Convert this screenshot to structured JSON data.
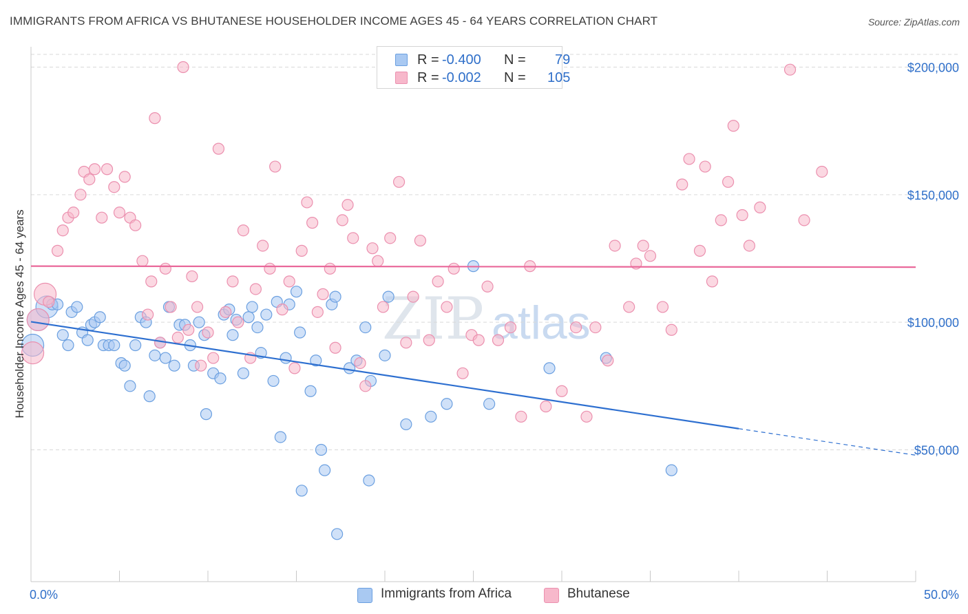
{
  "title": "IMMIGRANTS FROM AFRICA VS BHUTANESE HOUSEHOLDER INCOME AGES 45 - 64 YEARS CORRELATION CHART",
  "source": "Source: ZipAtlas.com",
  "watermark": {
    "zip": "ZIP",
    "atlas": "atlas"
  },
  "legend": {
    "r_label": "R =",
    "n_label": "N =",
    "africa": {
      "r": "-0.400",
      "n": "79"
    },
    "bhutanese": {
      "r": "-0.002",
      "n": "105"
    }
  },
  "colors": {
    "africa_fill": "#a9c9f2",
    "africa_stroke": "#6a9fe0",
    "africa_line": "#2d6fd0",
    "bhutanese_fill": "#f7b8cb",
    "bhutanese_stroke": "#eb8fae",
    "bhutanese_line": "#e9689a",
    "tick_label": "#2f6fc9",
    "grid": "#d9d9d9"
  },
  "chart_data": {
    "type": "scatter",
    "title": "IMMIGRANTS FROM AFRICA VS BHUTANESE HOUSEHOLDER INCOME AGES 45 - 64 YEARS CORRELATION CHART",
    "xlabel": "",
    "ylabel": "Householder Income Ages 45 - 64 years",
    "xlim": [
      0,
      50
    ],
    "ylim": [
      0,
      205000
    ],
    "x_tick_labels": [
      "0.0%",
      "50.0%"
    ],
    "y_ticks": [
      50000,
      100000,
      150000,
      200000
    ],
    "y_tick_labels": [
      "$50,000",
      "$100,000",
      "$150,000",
      "$200,000"
    ],
    "grid": "horizontal dashed",
    "legend_position": "top-center and bottom",
    "series": [
      {
        "name": "Immigrants from Africa",
        "r": -0.4,
        "n": 79,
        "trend": {
          "x": [
            0,
            40
          ],
          "y": [
            100200,
            58300
          ],
          "dashed_to": [
            50,
            47900
          ]
        },
        "points": [
          [
            0.1,
            91000,
            "L"
          ],
          [
            0.4,
            101000,
            "L"
          ],
          [
            0.9,
            106000,
            "L"
          ],
          [
            1.2,
            107000
          ],
          [
            1.5,
            107000
          ],
          [
            1.8,
            95000
          ],
          [
            2.1,
            91000
          ],
          [
            2.3,
            104000
          ],
          [
            2.6,
            106000
          ],
          [
            2.9,
            96000
          ],
          [
            3.2,
            93000
          ],
          [
            3.4,
            99000
          ],
          [
            3.6,
            100000
          ],
          [
            3.9,
            102000
          ],
          [
            4.1,
            91000
          ],
          [
            4.4,
            91000
          ],
          [
            4.7,
            91000
          ],
          [
            5.1,
            84000
          ],
          [
            5.3,
            83000
          ],
          [
            5.6,
            75000
          ],
          [
            5.9,
            91000
          ],
          [
            6.2,
            102000
          ],
          [
            6.5,
            100000
          ],
          [
            6.7,
            71000
          ],
          [
            7.0,
            87000
          ],
          [
            7.3,
            92000
          ],
          [
            7.6,
            86000
          ],
          [
            7.8,
            106000
          ],
          [
            8.1,
            83000
          ],
          [
            8.4,
            99000
          ],
          [
            8.7,
            99000
          ],
          [
            9.0,
            91000
          ],
          [
            9.2,
            83000
          ],
          [
            9.5,
            100000
          ],
          [
            9.8,
            95000
          ],
          [
            9.9,
            64000
          ],
          [
            10.3,
            80000
          ],
          [
            10.7,
            78000
          ],
          [
            10.9,
            103000
          ],
          [
            11.2,
            105000
          ],
          [
            11.4,
            95000
          ],
          [
            11.6,
            101000
          ],
          [
            12.0,
            80000
          ],
          [
            12.3,
            102000
          ],
          [
            12.5,
            106000
          ],
          [
            12.8,
            98000
          ],
          [
            13.0,
            88000
          ],
          [
            13.3,
            103000
          ],
          [
            13.7,
            77000
          ],
          [
            13.9,
            108000
          ],
          [
            14.1,
            55000
          ],
          [
            14.4,
            86000
          ],
          [
            14.6,
            107000
          ],
          [
            15.0,
            112000
          ],
          [
            15.2,
            96000
          ],
          [
            15.3,
            34000
          ],
          [
            15.8,
            73000
          ],
          [
            16.1,
            85000
          ],
          [
            16.4,
            50000
          ],
          [
            16.6,
            42000
          ],
          [
            17.0,
            107000
          ],
          [
            17.2,
            110000
          ],
          [
            17.3,
            17000
          ],
          [
            18.0,
            82000
          ],
          [
            18.4,
            85000
          ],
          [
            18.9,
            98000
          ],
          [
            19.1,
            38000
          ],
          [
            19.2,
            77000
          ],
          [
            20.0,
            87000
          ],
          [
            20.2,
            110000
          ],
          [
            21.2,
            60000
          ],
          [
            22.6,
            63000
          ],
          [
            23.5,
            68000
          ],
          [
            25.0,
            122000
          ],
          [
            25.9,
            68000
          ],
          [
            29.3,
            82000
          ],
          [
            32.5,
            86000
          ],
          [
            36.2,
            42000
          ]
        ]
      },
      {
        "name": "Bhutanese",
        "r": -0.002,
        "n": 105,
        "trend": {
          "x": [
            0,
            50
          ],
          "y": [
            122000,
            121600
          ]
        },
        "points": [
          [
            0.1,
            88000,
            "L"
          ],
          [
            0.4,
            101000,
            "L"
          ],
          [
            0.8,
            111000,
            "L"
          ],
          [
            1.0,
            108000
          ],
          [
            1.5,
            128000
          ],
          [
            1.8,
            136000
          ],
          [
            2.1,
            141000
          ],
          [
            2.4,
            143000
          ],
          [
            2.8,
            150000
          ],
          [
            3.0,
            159000
          ],
          [
            3.3,
            156000
          ],
          [
            3.6,
            160000
          ],
          [
            4.0,
            141000
          ],
          [
            4.3,
            160000
          ],
          [
            4.7,
            153000
          ],
          [
            5.0,
            143000
          ],
          [
            5.3,
            157000
          ],
          [
            5.6,
            141000
          ],
          [
            5.9,
            138000
          ],
          [
            6.3,
            124000
          ],
          [
            6.6,
            103000
          ],
          [
            6.8,
            116000
          ],
          [
            7.0,
            180000
          ],
          [
            7.3,
            92000
          ],
          [
            7.6,
            121000
          ],
          [
            7.9,
            106000
          ],
          [
            8.3,
            94000
          ],
          [
            8.6,
            200000
          ],
          [
            8.9,
            97000
          ],
          [
            9.1,
            118000
          ],
          [
            9.4,
            106000
          ],
          [
            9.6,
            83000
          ],
          [
            10.0,
            96000
          ],
          [
            10.3,
            86000
          ],
          [
            10.6,
            168000
          ],
          [
            11.0,
            104000
          ],
          [
            11.4,
            116000
          ],
          [
            11.7,
            100000
          ],
          [
            12.0,
            136000
          ],
          [
            12.4,
            86000
          ],
          [
            12.7,
            113000
          ],
          [
            13.1,
            130000
          ],
          [
            13.5,
            121000
          ],
          [
            13.8,
            161000
          ],
          [
            14.2,
            105000
          ],
          [
            14.6,
            116000
          ],
          [
            14.9,
            82000
          ],
          [
            15.3,
            128000
          ],
          [
            15.6,
            147000
          ],
          [
            15.9,
            139000
          ],
          [
            16.2,
            104000
          ],
          [
            16.5,
            111000
          ],
          [
            16.9,
            121000
          ],
          [
            17.2,
            90000
          ],
          [
            17.6,
            140000
          ],
          [
            17.9,
            146000
          ],
          [
            18.2,
            133000
          ],
          [
            18.6,
            84000
          ],
          [
            18.9,
            75000
          ],
          [
            19.3,
            129000
          ],
          [
            19.6,
            124000
          ],
          [
            19.9,
            106000
          ],
          [
            20.3,
            133000
          ],
          [
            20.8,
            155000
          ],
          [
            21.2,
            92000
          ],
          [
            21.6,
            110000
          ],
          [
            22.0,
            132000
          ],
          [
            22.5,
            93000
          ],
          [
            23.0,
            116000
          ],
          [
            23.5,
            106000
          ],
          [
            23.9,
            121000
          ],
          [
            24.4,
            80000
          ],
          [
            24.9,
            95000
          ],
          [
            25.3,
            93000
          ],
          [
            25.8,
            114000
          ],
          [
            26.4,
            93000
          ],
          [
            27.1,
            98000
          ],
          [
            27.7,
            63000
          ],
          [
            28.2,
            122000
          ],
          [
            29.1,
            67000
          ],
          [
            30.0,
            73000
          ],
          [
            30.8,
            98000
          ],
          [
            31.4,
            63000
          ],
          [
            31.9,
            98000
          ],
          [
            32.6,
            85000
          ],
          [
            33.0,
            130000
          ],
          [
            33.8,
            106000
          ],
          [
            34.2,
            123000
          ],
          [
            34.6,
            130000
          ],
          [
            35.0,
            126000
          ],
          [
            35.7,
            106000
          ],
          [
            36.2,
            97000
          ],
          [
            36.8,
            154000
          ],
          [
            37.2,
            164000
          ],
          [
            37.8,
            128000
          ],
          [
            38.1,
            161000
          ],
          [
            38.5,
            116000
          ],
          [
            39.0,
            140000
          ],
          [
            39.4,
            155000
          ],
          [
            39.7,
            177000
          ],
          [
            40.2,
            142000
          ],
          [
            40.6,
            130000
          ],
          [
            41.2,
            145000
          ],
          [
            42.9,
            199000
          ],
          [
            43.7,
            140000
          ],
          [
            44.7,
            159000
          ]
        ]
      }
    ]
  },
  "axis": {
    "ylabel": "Householder Income Ages 45 - 64 years",
    "x_min_label": "0.0%",
    "x_max_label": "50.0%",
    "y_labels": [
      "$50,000",
      "$100,000",
      "$150,000",
      "$200,000"
    ]
  },
  "bottom_legend": {
    "africa": "Immigrants from Africa",
    "bhutanese": "Bhutanese"
  }
}
